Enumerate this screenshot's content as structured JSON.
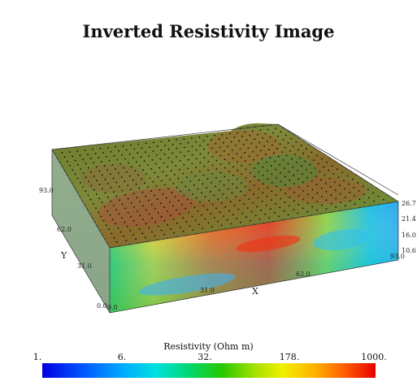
{
  "title": "Inverted Resistivity Image",
  "axes": {
    "x_name": "X",
    "y_name": "Y",
    "x_ticks": [
      "0.0",
      "31.0",
      "62.0",
      "93.0"
    ],
    "y_ticks": [
      "31.0",
      "62.0",
      "93.0"
    ],
    "z_ticks": [
      "10.6",
      "16.0",
      "21.4",
      "26.7"
    ]
  },
  "legend": {
    "title": "Resistivity (Ohm m)",
    "ticks": [
      "1.",
      "6.",
      "32.",
      "178.",
      "1000."
    ],
    "colors": [
      "#0000e0",
      "#00aaff",
      "#00d870",
      "#f0f000",
      "#ff5a00",
      "#e80000"
    ]
  }
}
